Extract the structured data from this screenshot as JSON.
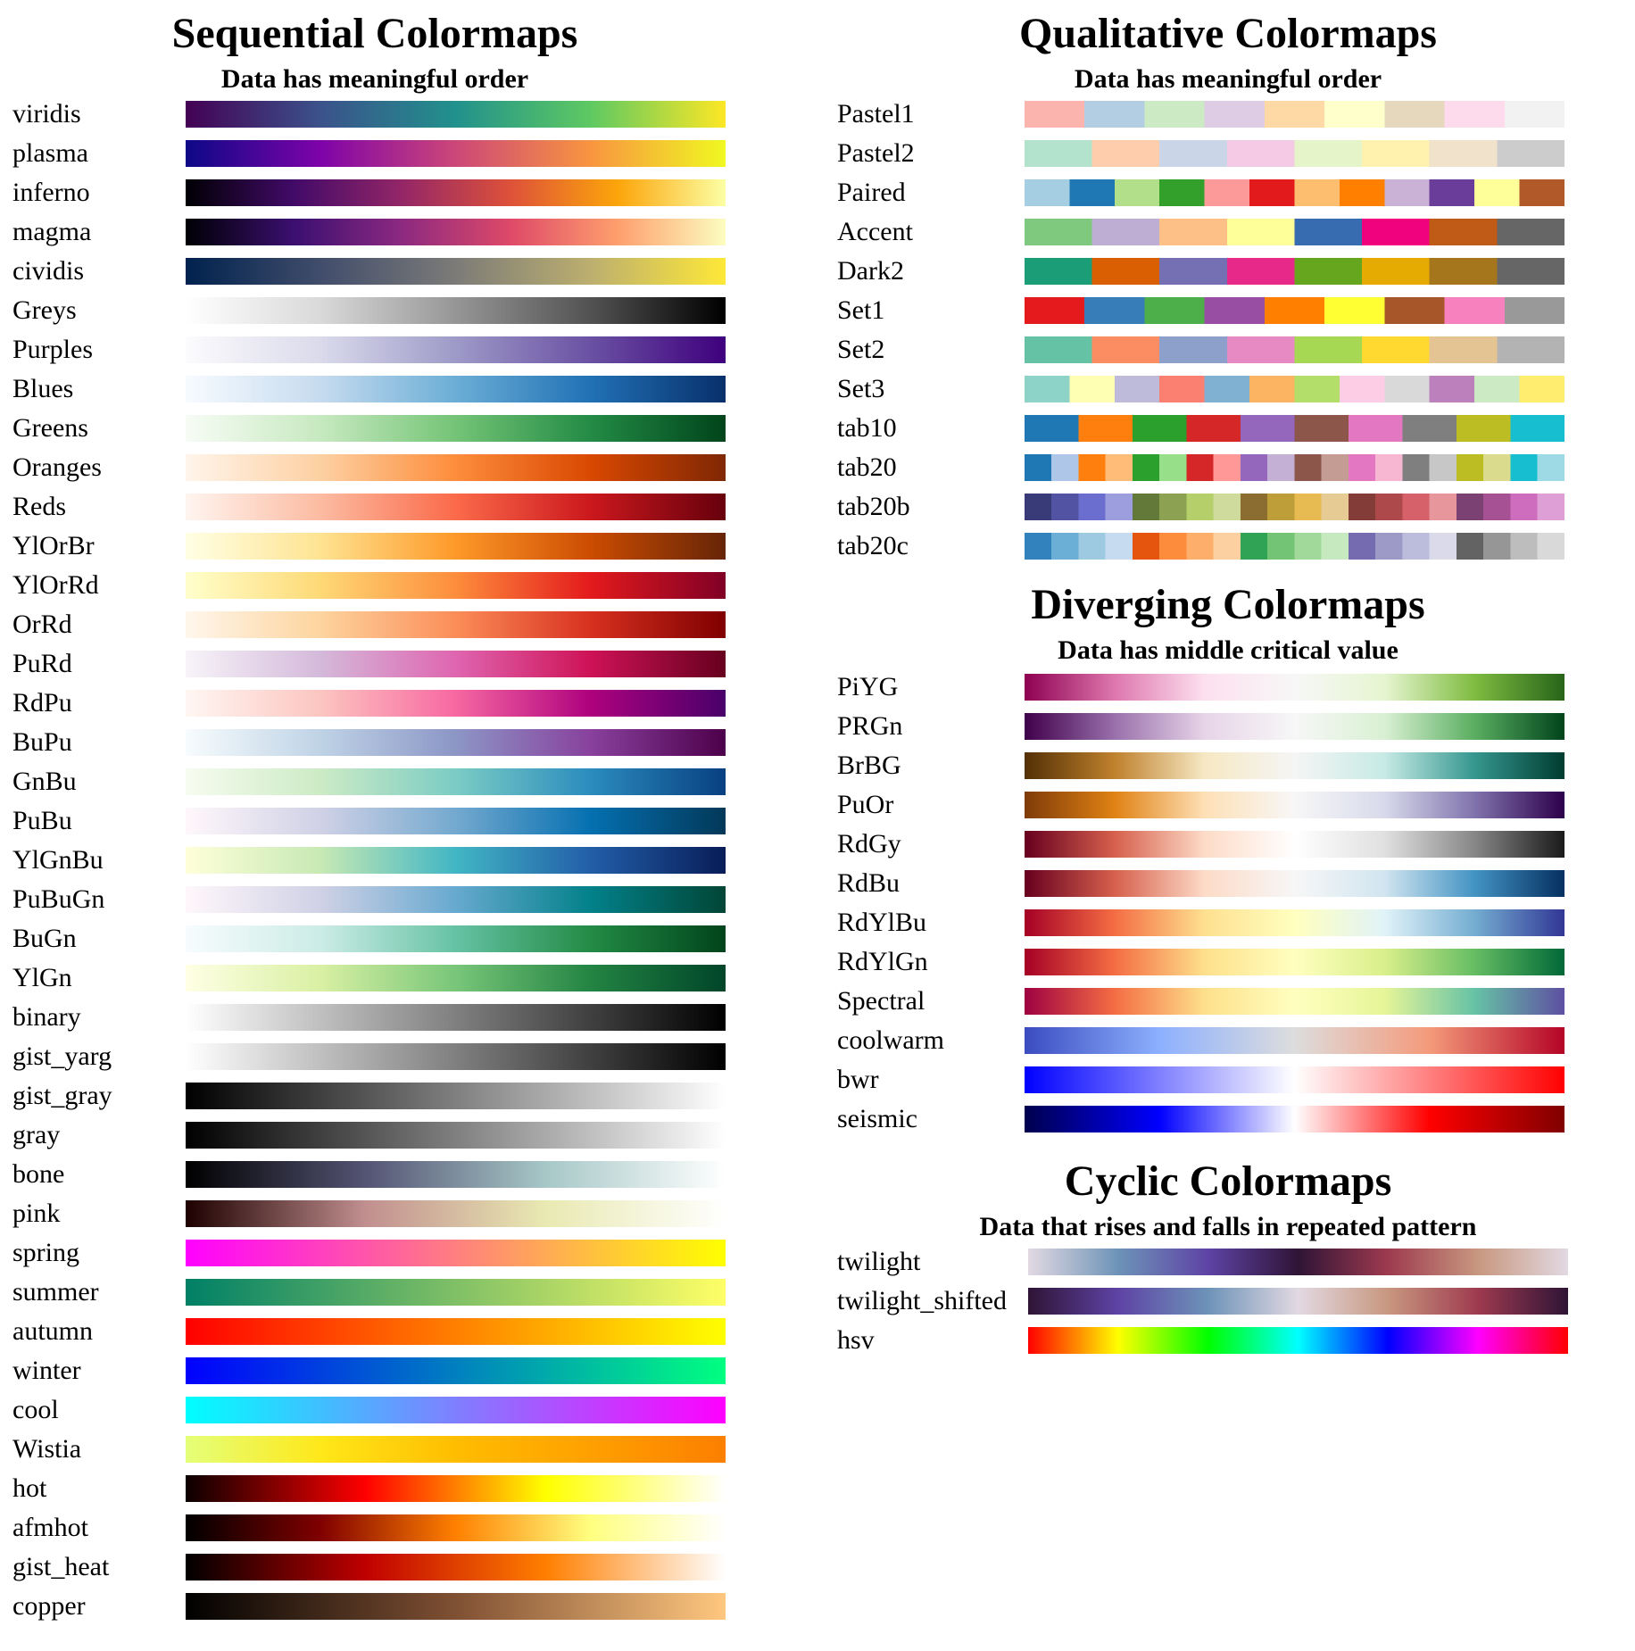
{
  "sections": {
    "sequential": {
      "title": "Sequential Colormaps",
      "subtitle": "Data has meaningful order",
      "colormaps": [
        {
          "name": "viridis",
          "colors": [
            "#440154",
            "#3b528b",
            "#21918c",
            "#5ec962",
            "#fde725"
          ]
        },
        {
          "name": "plasma",
          "colors": [
            "#0d0887",
            "#7e03a8",
            "#cc4778",
            "#f89540",
            "#f0f921"
          ]
        },
        {
          "name": "inferno",
          "colors": [
            "#000004",
            "#420a68",
            "#932667",
            "#dd513a",
            "#fca50a",
            "#fcffa4"
          ]
        },
        {
          "name": "magma",
          "colors": [
            "#000004",
            "#3b0f70",
            "#8c2981",
            "#de4968",
            "#fe9f6d",
            "#fcfdbf"
          ]
        },
        {
          "name": "cividis",
          "colors": [
            "#00224e",
            "#414d6b",
            "#7c7b78",
            "#bcaf6f",
            "#fee838"
          ]
        },
        {
          "name": "Greys",
          "colors": [
            "#ffffff",
            "#d9d9d9",
            "#969696",
            "#525252",
            "#000000"
          ]
        },
        {
          "name": "Purples",
          "colors": [
            "#fcfbfd",
            "#dadaeb",
            "#9e9ac8",
            "#6a51a3",
            "#3f007d"
          ]
        },
        {
          "name": "Blues",
          "colors": [
            "#f7fbff",
            "#c6dbef",
            "#6baed6",
            "#2171b5",
            "#08306b"
          ]
        },
        {
          "name": "Greens",
          "colors": [
            "#f7fcf5",
            "#c7e9c0",
            "#74c476",
            "#238b45",
            "#00441b"
          ]
        },
        {
          "name": "Oranges",
          "colors": [
            "#fff5eb",
            "#fdd0a2",
            "#fd8d3c",
            "#d94801",
            "#7f2704"
          ]
        },
        {
          "name": "Reds",
          "colors": [
            "#fff5f0",
            "#fcbba1",
            "#fb6a4a",
            "#cb181d",
            "#67000d"
          ]
        },
        {
          "name": "YlOrBr",
          "colors": [
            "#ffffe5",
            "#fee391",
            "#fe9929",
            "#cc4c02",
            "#662506"
          ]
        },
        {
          "name": "YlOrRd",
          "colors": [
            "#ffffcc",
            "#fed976",
            "#fd8d3c",
            "#e31a1c",
            "#800026"
          ]
        },
        {
          "name": "OrRd",
          "colors": [
            "#fff7ec",
            "#fdd49e",
            "#fc8d59",
            "#d7301f",
            "#7f0000"
          ]
        },
        {
          "name": "PuRd",
          "colors": [
            "#f7f4f9",
            "#d4b9da",
            "#df65b0",
            "#ce1256",
            "#67001f"
          ]
        },
        {
          "name": "RdPu",
          "colors": [
            "#fff7f3",
            "#fcc5c0",
            "#f768a1",
            "#ae017e",
            "#49006a"
          ]
        },
        {
          "name": "BuPu",
          "colors": [
            "#f7fcfd",
            "#bfd3e6",
            "#8c96c6",
            "#88419d",
            "#4d004b"
          ]
        },
        {
          "name": "GnBu",
          "colors": [
            "#f7fcf0",
            "#ccebc5",
            "#7bccc4",
            "#2b8cbe",
            "#084081"
          ]
        },
        {
          "name": "PuBu",
          "colors": [
            "#fff7fb",
            "#d0d1e6",
            "#74a9cf",
            "#0570b0",
            "#023858"
          ]
        },
        {
          "name": "YlGnBu",
          "colors": [
            "#ffffd9",
            "#c7e9b4",
            "#41b6c4",
            "#225ea8",
            "#081d58"
          ]
        },
        {
          "name": "PuBuGn",
          "colors": [
            "#fff7fb",
            "#d0d1e6",
            "#67a9cf",
            "#02818a",
            "#014636"
          ]
        },
        {
          "name": "BuGn",
          "colors": [
            "#f7fcfd",
            "#ccece6",
            "#66c2a4",
            "#238b45",
            "#00441b"
          ]
        },
        {
          "name": "YlGn",
          "colors": [
            "#ffffe5",
            "#d9f0a3",
            "#78c679",
            "#238443",
            "#004529"
          ]
        },
        {
          "name": "binary",
          "colors": [
            "#ffffff",
            "#000000"
          ]
        },
        {
          "name": "gist_yarg",
          "colors": [
            "#ffffff",
            "#000000"
          ]
        },
        {
          "name": "gist_gray",
          "colors": [
            "#000000",
            "#ffffff"
          ]
        },
        {
          "name": "gray",
          "colors": [
            "#000000",
            "#ffffff"
          ]
        },
        {
          "name": "bone",
          "colors": [
            "#000000",
            "#545474",
            "#a7c7c7",
            "#ffffff"
          ]
        },
        {
          "name": "pink",
          "colors": [
            "#1e0000",
            "#c18f8f",
            "#e9e9b2",
            "#ffffff"
          ]
        },
        {
          "name": "spring",
          "colors": [
            "#ff00ff",
            "#ffff00"
          ]
        },
        {
          "name": "summer",
          "colors": [
            "#008066",
            "#ffff66"
          ]
        },
        {
          "name": "autumn",
          "colors": [
            "#ff0000",
            "#ffff00"
          ]
        },
        {
          "name": "winter",
          "colors": [
            "#0000ff",
            "#00ff80"
          ]
        },
        {
          "name": "cool",
          "colors": [
            "#00ffff",
            "#ff00ff"
          ]
        },
        {
          "name": "Wistia",
          "colors": [
            "#e4ff7a",
            "#ffe81a",
            "#ffbd00",
            "#ffa000",
            "#fc7f00"
          ]
        },
        {
          "name": "hot",
          "colors": [
            "#0b0000",
            "#ff0000",
            "#ffff00",
            "#ffffff"
          ]
        },
        {
          "name": "afmhot",
          "colors": [
            "#000000",
            "#800000",
            "#ff8000",
            "#ffff80",
            "#ffffff"
          ]
        },
        {
          "name": "gist_heat",
          "colors": [
            "#000000",
            "#bf0000",
            "#ff7f00",
            "#ffffff"
          ]
        },
        {
          "name": "copper",
          "colors": [
            "#000000",
            "#7f5033",
            "#ffc77f"
          ]
        }
      ]
    },
    "qualitative": {
      "title": "Qualitative Colormaps",
      "subtitle": "Data has meaningful order",
      "colormaps": [
        {
          "name": "Pastel1",
          "colors": [
            "#fbb4ae",
            "#b3cde3",
            "#ccebc5",
            "#decbe4",
            "#fed9a6",
            "#ffffcc",
            "#e5d8bd",
            "#fddaec",
            "#f2f2f2"
          ]
        },
        {
          "name": "Pastel2",
          "colors": [
            "#b3e2cd",
            "#fdcdac",
            "#cbd5e8",
            "#f4cae4",
            "#e6f5c9",
            "#fff2ae",
            "#f1e2cc",
            "#cccccc"
          ]
        },
        {
          "name": "Paired",
          "colors": [
            "#a6cee3",
            "#1f78b4",
            "#b2df8a",
            "#33a02c",
            "#fb9a99",
            "#e31a1c",
            "#fdbf6f",
            "#ff7f00",
            "#cab2d6",
            "#6a3d9a",
            "#ffff99",
            "#b15928"
          ]
        },
        {
          "name": "Accent",
          "colors": [
            "#7fc97f",
            "#beaed4",
            "#fdc086",
            "#ffff99",
            "#386cb0",
            "#f0027f",
            "#bf5b17",
            "#666666"
          ]
        },
        {
          "name": "Dark2",
          "colors": [
            "#1b9e77",
            "#d95f02",
            "#7570b3",
            "#e7298a",
            "#66a61e",
            "#e6ab02",
            "#a6761d",
            "#666666"
          ]
        },
        {
          "name": "Set1",
          "colors": [
            "#e41a1c",
            "#377eb8",
            "#4daf4a",
            "#984ea3",
            "#ff7f00",
            "#ffff33",
            "#a65628",
            "#f781bf",
            "#999999"
          ]
        },
        {
          "name": "Set2",
          "colors": [
            "#66c2a5",
            "#fc8d62",
            "#8da0cb",
            "#e78ac3",
            "#a6d854",
            "#ffd92f",
            "#e5c494",
            "#b3b3b3"
          ]
        },
        {
          "name": "Set3",
          "colors": [
            "#8dd3c7",
            "#ffffb3",
            "#bebada",
            "#fb8072",
            "#80b1d3",
            "#fdb462",
            "#b3de69",
            "#fccde5",
            "#d9d9d9",
            "#bc80bd",
            "#ccebc5",
            "#ffed6f"
          ]
        },
        {
          "name": "tab10",
          "colors": [
            "#1f77b4",
            "#ff7f0e",
            "#2ca02c",
            "#d62728",
            "#9467bd",
            "#8c564b",
            "#e377c2",
            "#7f7f7f",
            "#bcbd22",
            "#17becf"
          ]
        },
        {
          "name": "tab20",
          "colors": [
            "#1f77b4",
            "#aec7e8",
            "#ff7f0e",
            "#ffbb78",
            "#2ca02c",
            "#98df8a",
            "#d62728",
            "#ff9896",
            "#9467bd",
            "#c5b0d5",
            "#8c564b",
            "#c49c94",
            "#e377c2",
            "#f7b6d2",
            "#7f7f7f",
            "#c7c7c7",
            "#bcbd22",
            "#dbdb8d",
            "#17becf",
            "#9edae5"
          ]
        },
        {
          "name": "tab20b",
          "colors": [
            "#393b79",
            "#5254a3",
            "#6b6ecf",
            "#9c9ede",
            "#637939",
            "#8ca252",
            "#b5cf6b",
            "#cedb9c",
            "#8c6d31",
            "#bd9e39",
            "#e7ba52",
            "#e7cb94",
            "#843c39",
            "#ad494a",
            "#d6616b",
            "#e7969c",
            "#7b4173",
            "#a55194",
            "#ce6dbd",
            "#de9ed6"
          ]
        },
        {
          "name": "tab20c",
          "colors": [
            "#3182bd",
            "#6baed6",
            "#9ecae1",
            "#c6dbef",
            "#e6550d",
            "#fd8d3c",
            "#fdae6b",
            "#fdd0a2",
            "#31a354",
            "#74c476",
            "#a1d99b",
            "#c7e9c0",
            "#756bb1",
            "#9e9ac8",
            "#bcbddc",
            "#dadaeb",
            "#636363",
            "#969696",
            "#bdbdbd",
            "#d9d9d9"
          ]
        }
      ]
    },
    "diverging": {
      "title": "Diverging Colormaps",
      "subtitle": "Data has middle critical value",
      "colormaps": [
        {
          "name": "PiYG",
          "colors": [
            "#8e0152",
            "#de77ae",
            "#fde0ef",
            "#f7f7f7",
            "#e6f5d0",
            "#7fbc41",
            "#276419"
          ]
        },
        {
          "name": "PRGn",
          "colors": [
            "#40004b",
            "#9970ab",
            "#e7d4e8",
            "#f7f7f7",
            "#d9f0d3",
            "#5aae61",
            "#00441b"
          ]
        },
        {
          "name": "BrBG",
          "colors": [
            "#543005",
            "#bf812d",
            "#f6e8c3",
            "#f5f5f5",
            "#c7eae5",
            "#35978f",
            "#003c30"
          ]
        },
        {
          "name": "PuOr",
          "colors": [
            "#7f3b08",
            "#e08214",
            "#fee0b6",
            "#f7f7f7",
            "#d8daeb",
            "#8073ac",
            "#2d004b"
          ]
        },
        {
          "name": "RdGy",
          "colors": [
            "#67001f",
            "#d6604d",
            "#fddbc7",
            "#ffffff",
            "#e0e0e0",
            "#878787",
            "#1a1a1a"
          ]
        },
        {
          "name": "RdBu",
          "colors": [
            "#67001f",
            "#d6604d",
            "#fddbc7",
            "#f7f7f7",
            "#d1e5f0",
            "#4393c3",
            "#053061"
          ]
        },
        {
          "name": "RdYlBu",
          "colors": [
            "#a50026",
            "#f46d43",
            "#fee090",
            "#ffffbf",
            "#e0f3f8",
            "#74add1",
            "#313695"
          ]
        },
        {
          "name": "RdYlGn",
          "colors": [
            "#a50026",
            "#f46d43",
            "#fee08b",
            "#ffffbf",
            "#d9ef8b",
            "#66bd63",
            "#006837"
          ]
        },
        {
          "name": "Spectral",
          "colors": [
            "#9e0142",
            "#f46d43",
            "#fee08b",
            "#ffffbf",
            "#e6f598",
            "#66c2a5",
            "#5e4fa2"
          ]
        },
        {
          "name": "coolwarm",
          "colors": [
            "#3b4cc0",
            "#8db0fe",
            "#dddddd",
            "#f49a7b",
            "#b40426"
          ]
        },
        {
          "name": "bwr",
          "colors": [
            "#0000ff",
            "#ffffff",
            "#ff0000"
          ]
        },
        {
          "name": "seismic",
          "colors": [
            "#00004d",
            "#0000ff",
            "#ffffff",
            "#ff0000",
            "#800000"
          ]
        }
      ]
    },
    "cyclic": {
      "title": "Cyclic Colormaps",
      "subtitle": "Data that rises and falls in repeated pattern",
      "colormaps": [
        {
          "name": "twilight",
          "colors": [
            "#e2d9e2",
            "#6d93b8",
            "#5e43a5",
            "#2f1436",
            "#9e3a4f",
            "#c8977f",
            "#e2d9e2"
          ]
        },
        {
          "name": "twilight_shifted",
          "colors": [
            "#2f1436",
            "#5e43a5",
            "#6d93b8",
            "#e2d9e2",
            "#c8977f",
            "#9e3a4f",
            "#2f1436"
          ]
        },
        {
          "name": "hsv",
          "colors": [
            "#ff0000",
            "#ffff00",
            "#00ff00",
            "#00ffff",
            "#0000ff",
            "#ff00ff",
            "#ff0000"
          ]
        }
      ]
    }
  },
  "discrete_sections": [
    "qualitative"
  ]
}
